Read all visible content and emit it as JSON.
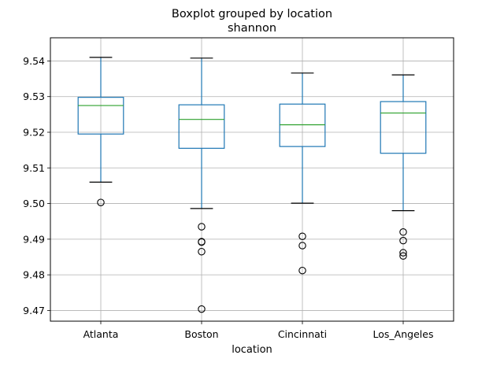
{
  "chart_data": {
    "type": "boxplot",
    "title": "Boxplot grouped by location",
    "subtitle": "shannon",
    "xlabel": "location",
    "ylabel": "",
    "ylim": [
      9.467,
      9.5465
    ],
    "yticks": [
      9.47,
      9.48,
      9.49,
      9.5,
      9.51,
      9.52,
      9.53,
      9.54
    ],
    "ytick_labels": [
      "9.47",
      "9.48",
      "9.49",
      "9.50",
      "9.51",
      "9.52",
      "9.53",
      "9.54"
    ],
    "grid": true,
    "colors": {
      "box": "#1f77b4",
      "median": "#2ca02c",
      "whisker": "#1f77b4",
      "cap": "#000000",
      "flier": "#000000",
      "grid": "#b0b0b0"
    },
    "categories": [
      "Atlanta",
      "Boston",
      "Cincinnati",
      "Los_Angeles"
    ],
    "boxes": [
      {
        "name": "Atlanta",
        "whislo": 9.506,
        "q1": 9.5195,
        "med": 9.5275,
        "q3": 9.5298,
        "whishi": 9.541,
        "fliers": [
          9.5003
        ]
      },
      {
        "name": "Boston",
        "whislo": 9.4986,
        "q1": 9.5155,
        "med": 9.5236,
        "q3": 9.5277,
        "whishi": 9.5408,
        "fliers": [
          9.4935,
          9.4893,
          9.4892,
          9.4865,
          9.4704
        ]
      },
      {
        "name": "Cincinnati",
        "whislo": 9.5001,
        "q1": 9.516,
        "med": 9.5221,
        "q3": 9.5279,
        "whishi": 9.5366,
        "fliers": [
          9.4908,
          9.4882,
          9.4812
        ]
      },
      {
        "name": "Los_Angeles",
        "whislo": 9.498,
        "q1": 9.5141,
        "med": 9.5254,
        "q3": 9.5286,
        "whishi": 9.5361,
        "fliers": [
          9.492,
          9.4896,
          9.4862,
          9.4853
        ]
      }
    ]
  }
}
